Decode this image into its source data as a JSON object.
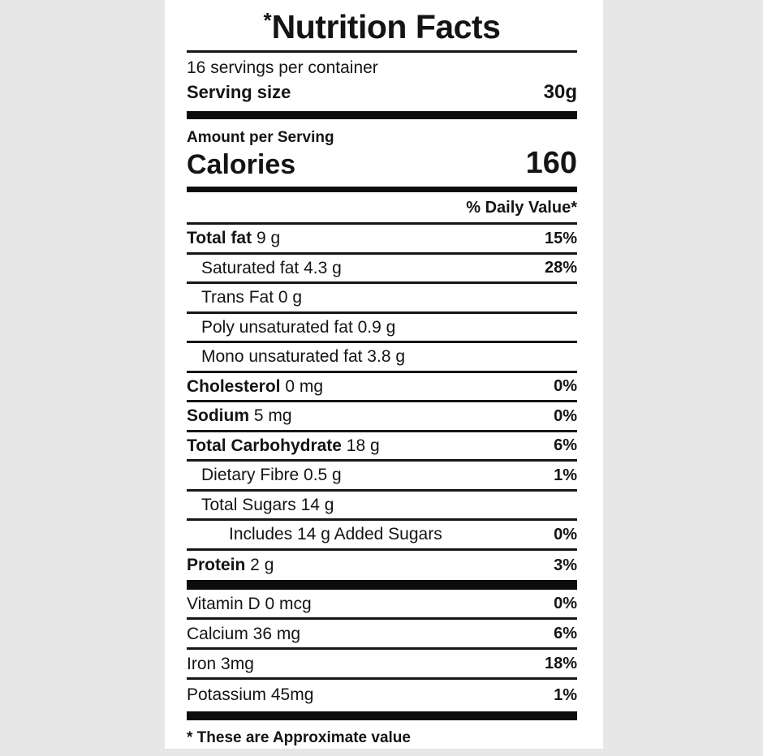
{
  "page": {
    "background_color": "#e7e7e7",
    "panel_color": "#ffffff",
    "text_color": "#141414"
  },
  "label": {
    "title_mark": "*",
    "title": "Nutrition Facts",
    "servings_line": "16 servings per container",
    "serving_size_label": "Serving size",
    "serving_size_value": "30g",
    "amount_per_serving": "Amount per Serving",
    "calories_label": "Calories",
    "calories_value": "160",
    "daily_value_header": "% Daily Value*",
    "nutrients": [
      {
        "b": "Total fat",
        "t": " 9 g",
        "pct": "15%"
      },
      {
        "b": "",
        "t": "Saturated fat 4.3 g",
        "pct": "28%"
      },
      {
        "b": "",
        "t": "Trans Fat 0 g",
        "pct": ""
      },
      {
        "b": "",
        "t": "Poly unsaturated fat 0.9 g",
        "pct": ""
      },
      {
        "b": "",
        "t": "Mono unsaturated fat 3.8 g",
        "pct": ""
      },
      {
        "b": "Cholesterol",
        "t": " 0 mg",
        "pct": "0%"
      },
      {
        "b": "Sodium",
        "t": " 5 mg",
        "pct": "0%"
      },
      {
        "b": "Total Carbohydrate",
        "t": " 18 g",
        "pct": "6%"
      },
      {
        "b": "",
        "t": "Dietary Fibre 0.5 g",
        "pct": "1%"
      },
      {
        "b": "",
        "t": "Total Sugars 14 g",
        "pct": ""
      },
      {
        "b": "",
        "t": "Includes 14 g Added Sugars",
        "pct": "0%"
      },
      {
        "b": "Protein",
        "t": " 2 g",
        "pct": "3%"
      }
    ],
    "vitamins": [
      {
        "t": "Vitamin D 0 mcg",
        "pct": "0%"
      },
      {
        "t": "Calcium 36 mg",
        "pct": "6%"
      },
      {
        "t": "Iron 3mg",
        "pct": "18%"
      },
      {
        "t": "Potassium 45mg",
        "pct": "1%"
      }
    ],
    "footnote": "* These are Approximate value"
  }
}
